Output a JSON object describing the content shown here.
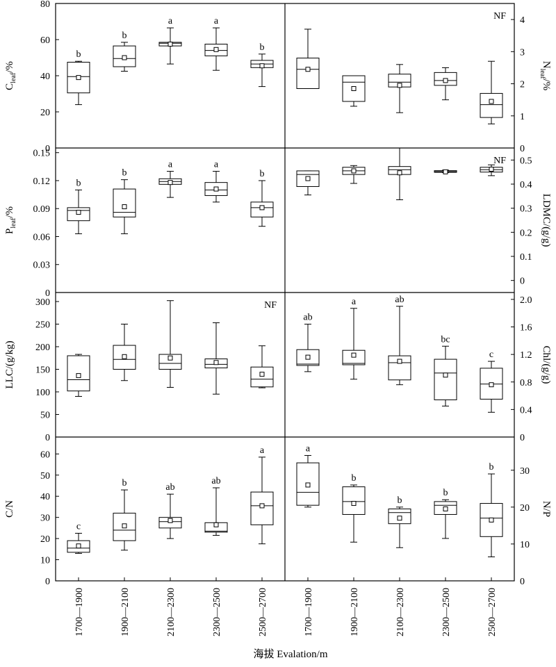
{
  "figure": {
    "xlabel": "海拔 Evalation/m",
    "categories": [
      "1700—1900",
      "1900—2100",
      "2100—2300",
      "2300—2500",
      "2500—2700"
    ]
  },
  "chart_data": [
    {
      "type": "box",
      "row": 0,
      "side": "left",
      "ylabel": "C",
      "ylabel_sub": "leaf",
      "ylabel_post": "/%",
      "ylim": [
        0,
        80
      ],
      "ticks": [
        0,
        20,
        40,
        60,
        80
      ],
      "tick_labels": [
        "0",
        "20",
        "40",
        "60",
        "80"
      ],
      "annotation": "",
      "boxes": [
        {
          "min": 24,
          "q1": 30.5,
          "median": 39.5,
          "q3": 47.5,
          "max": 48,
          "mean": 39,
          "letter": "b"
        },
        {
          "min": 42.5,
          "q1": 45,
          "median": 49.5,
          "q3": 56.5,
          "max": 58.5,
          "mean": 50,
          "letter": "b"
        },
        {
          "min": 46.5,
          "q1": 56.5,
          "median": 58,
          "q3": 58.5,
          "max": 66.5,
          "mean": 57.5,
          "letter": "a"
        },
        {
          "min": 43,
          "q1": 51,
          "median": 54,
          "q3": 57.5,
          "max": 66.5,
          "mean": 54.5,
          "letter": "a"
        },
        {
          "min": 34,
          "q1": 44.5,
          "median": 46.5,
          "q3": 48.5,
          "max": 52,
          "mean": 45.5,
          "letter": "b"
        }
      ]
    },
    {
      "type": "box",
      "row": 0,
      "side": "right",
      "ylabel": "N",
      "ylabel_sub": "leaf",
      "ylabel_post": "/%",
      "ylim": [
        0,
        4.5
      ],
      "ticks": [
        0,
        1,
        2,
        3,
        4
      ],
      "tick_labels": [
        "0",
        "1",
        "2",
        "3",
        "4"
      ],
      "annotation": "NF",
      "boxes": [
        {
          "min": 1.85,
          "q1": 1.85,
          "median": 2.45,
          "q3": 2.8,
          "max": 3.7,
          "mean": 2.45,
          "letter": ""
        },
        {
          "min": 1.3,
          "q1": 1.45,
          "median": 2.05,
          "q3": 2.25,
          "max": 2.25,
          "mean": 1.85,
          "letter": ""
        },
        {
          "min": 1.1,
          "q1": 1.9,
          "median": 2.05,
          "q3": 2.3,
          "max": 2.6,
          "mean": 1.95,
          "letter": ""
        },
        {
          "min": 1.5,
          "q1": 1.95,
          "median": 2.1,
          "q3": 2.35,
          "max": 2.5,
          "mean": 2.1,
          "letter": ""
        },
        {
          "min": 0.75,
          "q1": 0.95,
          "median": 1.35,
          "q3": 1.7,
          "max": 2.7,
          "mean": 1.45,
          "letter": ""
        }
      ]
    },
    {
      "type": "box",
      "row": 1,
      "side": "left",
      "ylabel": "P",
      "ylabel_sub": "leaf",
      "ylabel_post": "/%",
      "ylim": [
        0,
        0.155
      ],
      "ticks": [
        0,
        0.03,
        0.06,
        0.09,
        0.12,
        0.15
      ],
      "tick_labels": [
        "0",
        "0.03",
        "0.06",
        "0.09",
        "0.12",
        "0.15"
      ],
      "annotation": "",
      "boxes": [
        {
          "min": 0.063,
          "q1": 0.077,
          "median": 0.088,
          "q3": 0.091,
          "max": 0.11,
          "mean": 0.086,
          "letter": "b"
        },
        {
          "min": 0.063,
          "q1": 0.081,
          "median": 0.086,
          "q3": 0.111,
          "max": 0.121,
          "mean": 0.092,
          "letter": "b"
        },
        {
          "min": 0.102,
          "q1": 0.116,
          "median": 0.119,
          "q3": 0.122,
          "max": 0.13,
          "mean": 0.118,
          "letter": "a"
        },
        {
          "min": 0.097,
          "q1": 0.104,
          "median": 0.11,
          "q3": 0.118,
          "max": 0.13,
          "mean": 0.111,
          "letter": "a"
        },
        {
          "min": 0.071,
          "q1": 0.081,
          "median": 0.091,
          "q3": 0.097,
          "max": 0.12,
          "mean": 0.091,
          "letter": "b"
        }
      ]
    },
    {
      "type": "box",
      "row": 1,
      "side": "right",
      "ylabel": "LDMC/(g/g)",
      "ylabel_sub": "",
      "ylabel_post": "",
      "ylim": [
        -0.05,
        0.55
      ],
      "ticks": [
        0,
        0.1,
        0.2,
        0.3,
        0.4,
        0.5
      ],
      "tick_labels": [
        "0",
        "0.1",
        "0.2",
        "0.3",
        "0.4",
        "0.5"
      ],
      "annotation": "NF",
      "boxes": [
        {
          "min": 0.355,
          "q1": 0.39,
          "median": 0.44,
          "q3": 0.455,
          "max": 0.455,
          "mean": 0.423,
          "letter": ""
        },
        {
          "min": 0.403,
          "q1": 0.44,
          "median": 0.455,
          "q3": 0.47,
          "max": 0.477,
          "mean": 0.455,
          "letter": ""
        },
        {
          "min": 0.335,
          "q1": 0.44,
          "median": 0.46,
          "q3": 0.473,
          "max": 0.55,
          "mean": 0.447,
          "letter": ""
        },
        {
          "min": 0.448,
          "q1": 0.449,
          "median": 0.452,
          "q3": 0.456,
          "max": 0.458,
          "mean": 0.451,
          "letter": ""
        },
        {
          "min": 0.435,
          "q1": 0.45,
          "median": 0.46,
          "q3": 0.47,
          "max": 0.48,
          "mean": 0.462,
          "letter": ""
        }
      ]
    },
    {
      "type": "box",
      "row": 2,
      "side": "left",
      "ylabel": "LLC/(g/kg)",
      "ylabel_sub": "",
      "ylabel_post": "",
      "ylim": [
        0,
        320
      ],
      "ticks": [
        0,
        50,
        100,
        150,
        200,
        250,
        300
      ],
      "tick_labels": [
        "0",
        "50",
        "100",
        "150",
        "200",
        "250",
        "300"
      ],
      "annotation": "NF",
      "boxes": [
        {
          "min": 90,
          "q1": 102,
          "median": 127,
          "q3": 180,
          "max": 183,
          "mean": 136,
          "letter": ""
        },
        {
          "min": 125,
          "q1": 150,
          "median": 172,
          "q3": 203,
          "max": 250,
          "mean": 178,
          "letter": ""
        },
        {
          "min": 110,
          "q1": 150,
          "median": 163,
          "q3": 183,
          "max": 302,
          "mean": 175,
          "letter": ""
        },
        {
          "min": 95,
          "q1": 153,
          "median": 161,
          "q3": 173,
          "max": 253,
          "mean": 165,
          "letter": ""
        },
        {
          "min": 109,
          "q1": 111,
          "median": 128,
          "q3": 155,
          "max": 202,
          "mean": 139,
          "letter": ""
        }
      ]
    },
    {
      "type": "box",
      "row": 2,
      "side": "right",
      "ylabel": "Chl/(g/g)",
      "ylabel_sub": "",
      "ylabel_post": "",
      "ylim": [
        0,
        2.1
      ],
      "ticks": [
        0,
        0.4,
        0.8,
        1.2,
        1.6,
        2.0
      ],
      "tick_labels": [
        "0",
        "0.4",
        "0.8",
        "1.2",
        "1.6",
        "2.0"
      ],
      "annotation": "",
      "boxes": [
        {
          "min": 0.95,
          "q1": 1.04,
          "median": 1.06,
          "q3": 1.27,
          "max": 1.64,
          "mean": 1.16,
          "letter": "ab"
        },
        {
          "min": 0.84,
          "q1": 1.05,
          "median": 1.07,
          "q3": 1.26,
          "max": 1.87,
          "mean": 1.19,
          "letter": "a"
        },
        {
          "min": 0.76,
          "q1": 0.83,
          "median": 1.08,
          "q3": 1.18,
          "max": 1.9,
          "mean": 1.1,
          "letter": "ab"
        },
        {
          "min": 0.45,
          "q1": 0.54,
          "median": 0.93,
          "q3": 1.13,
          "max": 1.32,
          "mean": 0.9,
          "letter": "bc"
        },
        {
          "min": 0.36,
          "q1": 0.55,
          "median": 0.77,
          "q3": 1.0,
          "max": 1.1,
          "mean": 0.76,
          "letter": "c"
        }
      ]
    },
    {
      "type": "box",
      "row": 3,
      "side": "left",
      "ylabel": "C/N",
      "ylabel_sub": "",
      "ylabel_post": "",
      "ylim": [
        0,
        68
      ],
      "ticks": [
        0,
        10,
        20,
        30,
        40,
        50,
        60
      ],
      "tick_labels": [
        "0",
        "10",
        "20",
        "30",
        "40",
        "50",
        "60"
      ],
      "annotation": "",
      "boxes": [
        {
          "min": 13,
          "q1": 13.5,
          "median": 15.5,
          "q3": 19,
          "max": 22.5,
          "mean": 16.5,
          "letter": "c"
        },
        {
          "min": 14.5,
          "q1": 19,
          "median": 24,
          "q3": 32,
          "max": 43,
          "mean": 26,
          "letter": "b"
        },
        {
          "min": 20,
          "q1": 25,
          "median": 28,
          "q3": 30,
          "max": 41,
          "mean": 28.5,
          "letter": "ab"
        },
        {
          "min": 21.5,
          "q1": 23,
          "median": 23.5,
          "q3": 27.5,
          "max": 44,
          "mean": 26.5,
          "letter": "ab"
        },
        {
          "min": 17.5,
          "q1": 26.5,
          "median": 35.5,
          "q3": 42,
          "max": 58.5,
          "mean": 35.5,
          "letter": "a"
        }
      ]
    },
    {
      "type": "box",
      "row": 3,
      "side": "right",
      "ylabel": "N/P",
      "ylabel_sub": "",
      "ylabel_post": "",
      "ylim": [
        0,
        39
      ],
      "ticks": [
        0,
        10,
        20,
        30
      ],
      "tick_labels": [
        "0",
        "10",
        "20",
        "30"
      ],
      "annotation": "",
      "boxes": [
        {
          "min": 20,
          "q1": 20.5,
          "median": 24,
          "q3": 32,
          "max": 34,
          "mean": 26,
          "letter": "a"
        },
        {
          "min": 10.5,
          "q1": 18,
          "median": 21.5,
          "q3": 25.5,
          "max": 26,
          "mean": 21,
          "letter": "b"
        },
        {
          "min": 9,
          "q1": 15.5,
          "median": 18.5,
          "q3": 19.5,
          "max": 20,
          "mean": 17,
          "letter": "b"
        },
        {
          "min": 11.5,
          "q1": 18,
          "median": 20.5,
          "q3": 21.5,
          "max": 22,
          "mean": 19.5,
          "letter": "b"
        },
        {
          "min": 6.5,
          "q1": 12,
          "median": 17,
          "q3": 21,
          "max": 29,
          "mean": 16.5,
          "letter": "b"
        }
      ]
    }
  ]
}
